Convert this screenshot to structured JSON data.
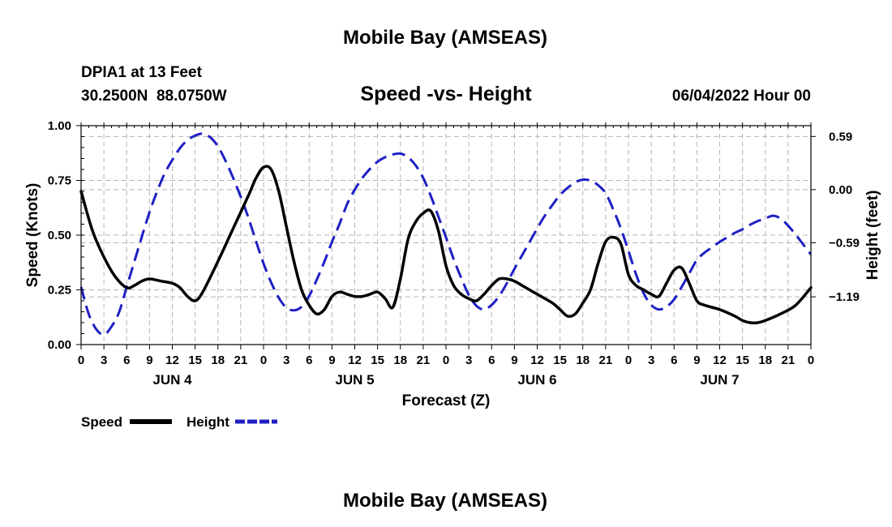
{
  "page": {
    "title_top": "Mobile Bay (AMSEAS)",
    "title_bottom": "Mobile Bay (AMSEAS)",
    "station_line1": "DPIA1 at 13 Feet",
    "station_line2": "30.2500N  88.0750W",
    "datetime": "06/04/2022 Hour 00"
  },
  "chart_data": {
    "type": "line",
    "title": "Speed -vs- Height",
    "xlabel": "Forecast (Z)",
    "ylabel_left": "Speed (Knots)",
    "ylabel_right": "Height (feet)",
    "x_range_hours": [
      0,
      96
    ],
    "x_tick_step_hours": 3,
    "x_tick_labels": [
      "0",
      "3",
      "6",
      "9",
      "12",
      "15",
      "18",
      "21",
      "0",
      "3",
      "6",
      "9",
      "12",
      "15",
      "18",
      "21",
      "0",
      "3",
      "6",
      "9",
      "12",
      "15",
      "18",
      "21",
      "0",
      "3",
      "6",
      "9",
      "12",
      "15",
      "18",
      "21",
      "0"
    ],
    "day_labels": [
      {
        "label": "JUN 4",
        "hour": 12
      },
      {
        "label": "JUN 5",
        "hour": 36
      },
      {
        "label": "JUN 6",
        "hour": 60
      },
      {
        "label": "JUN 7",
        "hour": 84
      }
    ],
    "left_axis": {
      "range": [
        0,
        1.0
      ],
      "ticks": [
        0.0,
        0.25,
        0.5,
        0.75,
        1.0
      ],
      "tick_labels": [
        "0.00",
        "0.25",
        "0.50",
        "0.75",
        "1.00"
      ]
    },
    "right_axis": {
      "range": [
        -1.72,
        0.71
      ],
      "ticks": [
        -1.19,
        -0.59,
        0.0,
        0.59
      ],
      "tick_labels": [
        "−1.19",
        "−0.59",
        "0.00",
        "0.59"
      ]
    },
    "series": [
      {
        "name": "Speed",
        "axis": "left",
        "color": "#000000",
        "style": "solid",
        "points": [
          [
            0,
            0.7
          ],
          [
            1.5,
            0.52
          ],
          [
            3,
            0.4
          ],
          [
            4.5,
            0.31
          ],
          [
            6,
            0.26
          ],
          [
            7,
            0.27
          ],
          [
            8,
            0.29
          ],
          [
            9,
            0.3
          ],
          [
            10.5,
            0.29
          ],
          [
            12,
            0.28
          ],
          [
            13,
            0.26
          ],
          [
            14,
            0.22
          ],
          [
            15,
            0.2
          ],
          [
            16,
            0.24
          ],
          [
            18,
            0.38
          ],
          [
            20,
            0.53
          ],
          [
            22,
            0.68
          ],
          [
            23,
            0.76
          ],
          [
            24,
            0.81
          ],
          [
            25,
            0.8
          ],
          [
            26,
            0.7
          ],
          [
            27,
            0.54
          ],
          [
            28,
            0.38
          ],
          [
            29,
            0.25
          ],
          [
            30,
            0.18
          ],
          [
            31,
            0.14
          ],
          [
            32,
            0.16
          ],
          [
            33,
            0.22
          ],
          [
            34,
            0.24
          ],
          [
            35,
            0.23
          ],
          [
            36,
            0.22
          ],
          [
            37,
            0.22
          ],
          [
            38,
            0.23
          ],
          [
            39,
            0.24
          ],
          [
            40,
            0.21
          ],
          [
            41,
            0.17
          ],
          [
            42,
            0.3
          ],
          [
            43,
            0.48
          ],
          [
            44,
            0.56
          ],
          [
            45,
            0.6
          ],
          [
            46,
            0.61
          ],
          [
            47,
            0.52
          ],
          [
            48,
            0.36
          ],
          [
            49,
            0.27
          ],
          [
            50,
            0.23
          ],
          [
            51,
            0.21
          ],
          [
            52,
            0.2
          ],
          [
            53,
            0.23
          ],
          [
            54,
            0.27
          ],
          [
            55,
            0.3
          ],
          [
            56,
            0.3
          ],
          [
            57,
            0.29
          ],
          [
            58,
            0.27
          ],
          [
            60,
            0.23
          ],
          [
            62,
            0.19
          ],
          [
            63,
            0.16
          ],
          [
            64,
            0.13
          ],
          [
            65,
            0.14
          ],
          [
            66,
            0.19
          ],
          [
            67,
            0.25
          ],
          [
            68,
            0.37
          ],
          [
            69,
            0.47
          ],
          [
            70,
            0.49
          ],
          [
            71,
            0.46
          ],
          [
            72,
            0.32
          ],
          [
            73,
            0.27
          ],
          [
            74,
            0.25
          ],
          [
            75,
            0.23
          ],
          [
            76,
            0.22
          ],
          [
            77,
            0.28
          ],
          [
            78,
            0.34
          ],
          [
            79,
            0.35
          ],
          [
            80,
            0.28
          ],
          [
            81,
            0.2
          ],
          [
            82,
            0.18
          ],
          [
            84,
            0.16
          ],
          [
            86,
            0.13
          ],
          [
            87,
            0.11
          ],
          [
            88,
            0.1
          ],
          [
            89,
            0.1
          ],
          [
            90,
            0.11
          ],
          [
            92,
            0.14
          ],
          [
            94,
            0.18
          ],
          [
            96,
            0.26
          ]
        ]
      },
      {
        "name": "Height",
        "axis": "right",
        "color": "#1f1fc4",
        "style": "dashed",
        "points": [
          [
            0,
            -1.08
          ],
          [
            1,
            -1.38
          ],
          [
            2,
            -1.55
          ],
          [
            3,
            -1.61
          ],
          [
            4,
            -1.52
          ],
          [
            5,
            -1.36
          ],
          [
            6,
            -1.08
          ],
          [
            7,
            -0.8
          ],
          [
            8,
            -0.52
          ],
          [
            9,
            -0.25
          ],
          [
            10,
            -0.02
          ],
          [
            11,
            0.18
          ],
          [
            12,
            0.33
          ],
          [
            13,
            0.46
          ],
          [
            14,
            0.55
          ],
          [
            15,
            0.6
          ],
          [
            16,
            0.62
          ],
          [
            17,
            0.58
          ],
          [
            18,
            0.48
          ],
          [
            19,
            0.32
          ],
          [
            20,
            0.13
          ],
          [
            21,
            -0.08
          ],
          [
            22,
            -0.31
          ],
          [
            23,
            -0.57
          ],
          [
            24,
            -0.82
          ],
          [
            25,
            -1.03
          ],
          [
            26,
            -1.2
          ],
          [
            27,
            -1.31
          ],
          [
            28,
            -1.34
          ],
          [
            29,
            -1.3
          ],
          [
            30,
            -1.18
          ],
          [
            31,
            -1.0
          ],
          [
            32,
            -0.8
          ],
          [
            33,
            -0.58
          ],
          [
            34,
            -0.38
          ],
          [
            35,
            -0.16
          ],
          [
            36,
            0.0
          ],
          [
            37,
            0.13
          ],
          [
            38,
            0.23
          ],
          [
            39,
            0.31
          ],
          [
            40,
            0.36
          ],
          [
            41,
            0.39
          ],
          [
            42,
            0.4
          ],
          [
            43,
            0.36
          ],
          [
            44,
            0.27
          ],
          [
            45,
            0.13
          ],
          [
            46,
            -0.07
          ],
          [
            47,
            -0.3
          ],
          [
            48,
            -0.53
          ],
          [
            49,
            -0.77
          ],
          [
            50,
            -0.98
          ],
          [
            51,
            -1.17
          ],
          [
            52,
            -1.29
          ],
          [
            53,
            -1.33
          ],
          [
            54,
            -1.28
          ],
          [
            55,
            -1.18
          ],
          [
            56,
            -1.04
          ],
          [
            57,
            -0.88
          ],
          [
            58,
            -0.73
          ],
          [
            59,
            -0.58
          ],
          [
            60,
            -0.43
          ],
          [
            61,
            -0.29
          ],
          [
            62,
            -0.17
          ],
          [
            63,
            -0.06
          ],
          [
            64,
            0.02
          ],
          [
            65,
            0.08
          ],
          [
            66,
            0.11
          ],
          [
            67,
            0.1
          ],
          [
            68,
            0.05
          ],
          [
            69,
            -0.04
          ],
          [
            70,
            -0.22
          ],
          [
            71,
            -0.43
          ],
          [
            72,
            -0.68
          ],
          [
            73,
            -0.94
          ],
          [
            74,
            -1.15
          ],
          [
            75,
            -1.28
          ],
          [
            76,
            -1.33
          ],
          [
            77,
            -1.3
          ],
          [
            78,
            -1.22
          ],
          [
            79,
            -1.08
          ],
          [
            80,
            -0.93
          ],
          [
            81,
            -0.78
          ],
          [
            82,
            -0.7
          ],
          [
            83,
            -0.64
          ],
          [
            84,
            -0.58
          ],
          [
            85,
            -0.53
          ],
          [
            86,
            -0.48
          ],
          [
            87,
            -0.44
          ],
          [
            88,
            -0.39
          ],
          [
            89,
            -0.35
          ],
          [
            90,
            -0.32
          ],
          [
            91,
            -0.29
          ],
          [
            92,
            -0.32
          ],
          [
            93,
            -0.4
          ],
          [
            94,
            -0.5
          ],
          [
            95,
            -0.61
          ],
          [
            96,
            -0.72
          ]
        ]
      }
    ],
    "legend": [
      {
        "label": "Speed",
        "color": "#000000",
        "style": "solid"
      },
      {
        "label": "Height",
        "color": "#1f1fc4",
        "style": "dashed"
      }
    ]
  }
}
